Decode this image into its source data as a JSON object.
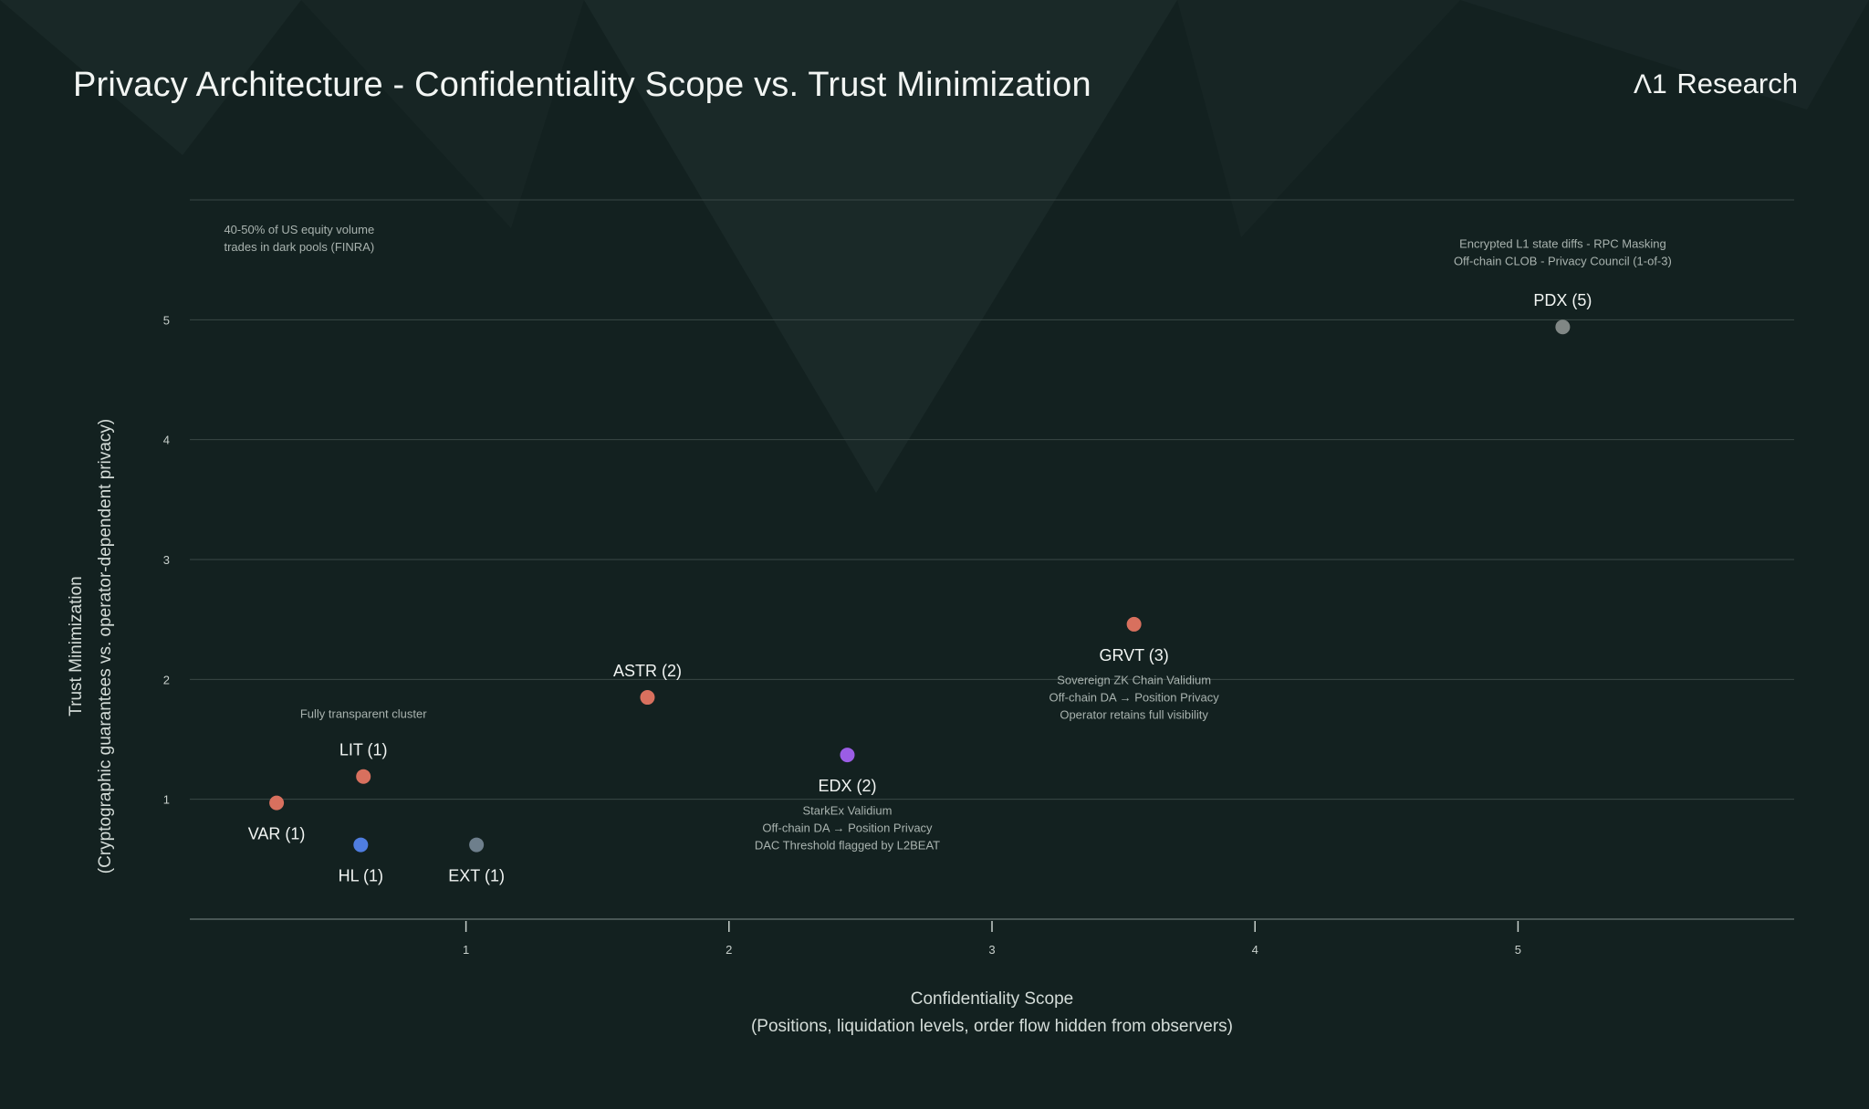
{
  "header": {
    "title": "Privacy Architecture - Confidentiality Scope vs. Trust Minimization",
    "brand_mark": "Λ1",
    "brand_name": "Research"
  },
  "colors": {
    "background": "#132120",
    "grid": "#3a4846",
    "text": "#f2f5f3",
    "muted_text": "#a9b3af",
    "orange": "#d8705e",
    "blue": "#4f7de0",
    "purple": "#9b5de5",
    "gray": "#808785",
    "slate": "#6e7f8c"
  },
  "chart_data": {
    "type": "scatter",
    "title": "Privacy Architecture - Confidentiality Scope vs. Trust Minimization",
    "xlabel": "Confidentiality Scope",
    "xlabel_sub": "(Positions, liquidation levels, order flow hidden from observers)",
    "ylabel": "Trust Minimization",
    "ylabel_sub": "(Cryptographic guarantees vs. operator-dependent privacy)",
    "xlim": [
      -0.05,
      6.05
    ],
    "ylim": [
      0,
      6
    ],
    "xticks": [
      1,
      2,
      3,
      4,
      5
    ],
    "yticks": [
      1,
      2,
      3,
      4,
      5
    ],
    "grid": "horizontal",
    "points": [
      {
        "label": "VAR (1)",
        "x": 0.28,
        "y": 0.97,
        "color": "#d8705e",
        "label_pos": "below"
      },
      {
        "label": "LIT (1)",
        "x": 0.61,
        "y": 1.19,
        "color": "#d8705e",
        "label_pos": "above"
      },
      {
        "label": "HL (1)",
        "x": 0.6,
        "y": 0.62,
        "color": "#4f7de0",
        "label_pos": "below"
      },
      {
        "label": "EXT (1)",
        "x": 1.04,
        "y": 0.62,
        "color": "#6e7f8c",
        "label_pos": "below"
      },
      {
        "label": "ASTR (2)",
        "x": 1.69,
        "y": 1.85,
        "color": "#d8705e",
        "label_pos": "above"
      },
      {
        "label": "EDX (2)",
        "x": 2.45,
        "y": 1.37,
        "color": "#9b5de5",
        "label_pos": "below"
      },
      {
        "label": "GRVT (3)",
        "x": 3.54,
        "y": 2.46,
        "color": "#d8705e",
        "label_pos": "below"
      },
      {
        "label": "PDX (5)",
        "x": 5.17,
        "y": 4.94,
        "color": "#808785",
        "label_pos": "above"
      }
    ],
    "annotations": [
      {
        "x": 0.08,
        "y": 5.72,
        "align": "start",
        "lines": [
          "40-50% of US equity volume",
          "trades in dark pools (FINRA)"
        ]
      },
      {
        "x": 0.61,
        "y": 1.68,
        "align": "middle",
        "lines": [
          "Fully transparent cluster"
        ]
      },
      {
        "x": 2.45,
        "y": 0.87,
        "align": "middle",
        "lines": [
          "StarkEx Validium",
          "Off-chain DA → Position Privacy",
          "DAC Threshold flagged by L2BEAT"
        ]
      },
      {
        "x": 3.54,
        "y": 1.96,
        "align": "middle",
        "lines": [
          "Sovereign ZK Chain Validium",
          "Off-chain DA → Position Privacy",
          "Operator retains full visibility"
        ]
      },
      {
        "x": 5.17,
        "y": 5.6,
        "align": "middle",
        "lines": [
          "Encrypted L1 state diffs - RPC Masking",
          "Off-chain CLOB - Privacy Council (1-of-3)"
        ]
      }
    ]
  }
}
